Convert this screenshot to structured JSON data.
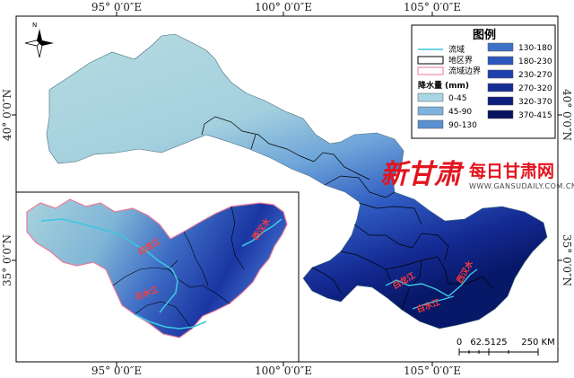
{
  "coordinates": {
    "top": [
      "95° 0′0″E",
      "100° 0′0″E",
      "105° 0′0″E"
    ],
    "bottom": [
      "95° 0′0″E",
      "100° 0′0″E",
      "105° 0′0″E"
    ],
    "left": [
      "40° 0′0″N",
      "35° 0′0″N"
    ],
    "right": [
      "40° 0′0″N",
      "35° 0′0″N"
    ]
  },
  "north_arrow": {
    "label": "N"
  },
  "legend": {
    "title": "图例",
    "lines": [
      {
        "label": "流域",
        "color": "#3ec6e0"
      },
      {
        "label": "地区界",
        "color": "#000000"
      },
      {
        "label": "流域边界",
        "color": "#e87a9a"
      }
    ],
    "precip_title": "降水量",
    "precip_unit": "(mm)",
    "classes_left": [
      {
        "label": "0-45",
        "color": "#a9d6e4"
      },
      {
        "label": "45-90",
        "color": "#7fb2dc"
      },
      {
        "label": "90-130",
        "color": "#5a90cf"
      }
    ],
    "classes_right": [
      {
        "label": "130-180",
        "color": "#3d71c7"
      },
      {
        "label": "180-230",
        "color": "#2c57bd"
      },
      {
        "label": "230-270",
        "color": "#1e40ad"
      },
      {
        "label": "270-320",
        "color": "#152e96"
      },
      {
        "label": "320-370",
        "color": "#0c1f7c"
      },
      {
        "label": "370-415",
        "color": "#07135e"
      }
    ]
  },
  "scale_bar": {
    "zero": "0",
    "mid": "62.5125",
    "end": "250 KM"
  },
  "rivers": {
    "inset_bailong": "白龙江",
    "inset_bai": "白水江",
    "inset_xihan": "西汉水",
    "main_bailong": "白龙江",
    "main_bai": "白水江",
    "main_xihan": "西汉水"
  },
  "watermark": {
    "paper": "新甘肃",
    "site": "每日甘肃网",
    "url": "WWW.GANSUDAILY.COM.CN"
  }
}
